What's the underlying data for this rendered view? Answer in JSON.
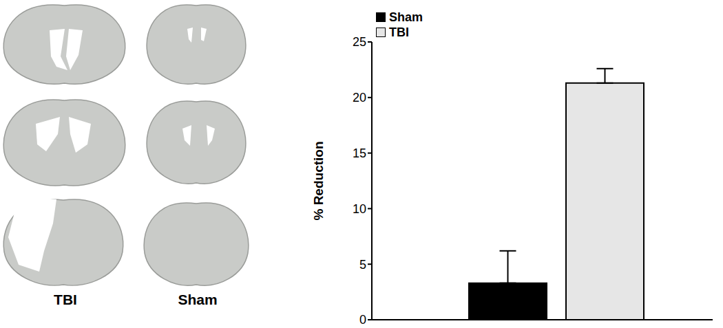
{
  "images": {
    "labels": [
      "TBI",
      "Sham"
    ]
  },
  "chart_data": {
    "type": "bar",
    "y_label": "% Reduction",
    "categories": [
      null
    ],
    "series": [
      {
        "name": "Sham",
        "color": "#000000",
        "values": [
          3.3
        ],
        "errors": [
          2.9
        ]
      },
      {
        "name": "TBI",
        "color": "#e6e6e6",
        "values": [
          21.3
        ],
        "errors": [
          1.3
        ]
      }
    ],
    "ylim": [
      0,
      25
    ],
    "yticks": [
      0,
      5,
      10,
      15,
      20,
      25
    ],
    "legend": "top-left",
    "grid": false
  }
}
